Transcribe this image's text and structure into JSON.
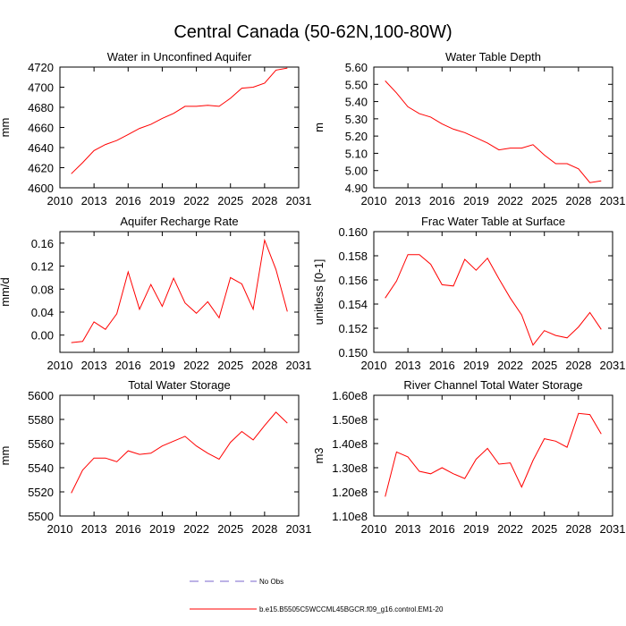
{
  "figure": {
    "title": "Central Canada (50-62N,100-80W)"
  },
  "legend": {
    "items": [
      {
        "label": "No Obs",
        "color": "#7a66cc",
        "dash": true
      },
      {
        "label": "b.e15.B5505C5WCCML45BGCR.f09_g16.control.EM1-20",
        "color": "#ff0000",
        "dash": false
      }
    ]
  },
  "chart_data": [
    {
      "type": "line",
      "title": "Water in Unconfined Aquifer",
      "ylabel": "mm",
      "xlim": [
        2010,
        2031
      ],
      "ylim": [
        4600,
        4720
      ],
      "xticks": [
        2010,
        2013,
        2016,
        2019,
        2022,
        2025,
        2028,
        2031
      ],
      "yticks": [
        4600,
        4620,
        4640,
        4660,
        4680,
        4700,
        4720
      ],
      "ytick_labels": [
        "4600",
        "4620",
        "4640",
        "4660",
        "4680",
        "4700",
        "4720"
      ],
      "color": "#ff0000",
      "x": [
        2011,
        2012,
        2013,
        2014,
        2015,
        2016,
        2017,
        2018,
        2019,
        2020,
        2021,
        2022,
        2023,
        2024,
        2025,
        2026,
        2027,
        2028,
        2029,
        2030
      ],
      "y": [
        4614,
        4625,
        4637,
        4643,
        4647,
        4653,
        4659,
        4663,
        4669,
        4674,
        4681,
        4681,
        4682,
        4681,
        4689,
        4699,
        4700,
        4704,
        4717,
        4719
      ]
    },
    {
      "type": "line",
      "title": "Water Table Depth",
      "ylabel": "m",
      "xlim": [
        2010,
        2031
      ],
      "ylim": [
        4.9,
        5.6
      ],
      "xticks": [
        2010,
        2013,
        2016,
        2019,
        2022,
        2025,
        2028,
        2031
      ],
      "yticks": [
        4.9,
        5.0,
        5.1,
        5.2,
        5.3,
        5.4,
        5.5,
        5.6
      ],
      "ytick_labels": [
        "4.90",
        "5.00",
        "5.10",
        "5.20",
        "5.30",
        "5.40",
        "5.50",
        "5.60"
      ],
      "color": "#ff0000",
      "x": [
        2011,
        2012,
        2013,
        2014,
        2015,
        2016,
        2017,
        2018,
        2019,
        2020,
        2021,
        2022,
        2023,
        2024,
        2025,
        2026,
        2027,
        2028,
        2029,
        2030
      ],
      "y": [
        5.52,
        5.45,
        5.37,
        5.33,
        5.31,
        5.27,
        5.24,
        5.22,
        5.19,
        5.16,
        5.12,
        5.13,
        5.13,
        5.15,
        5.09,
        5.04,
        5.04,
        5.01,
        4.93,
        4.94
      ]
    },
    {
      "type": "line",
      "title": "Aquifer Recharge Rate",
      "ylabel": "mm/d",
      "xlim": [
        2010,
        2031
      ],
      "ylim": [
        -0.03,
        0.18
      ],
      "xticks": [
        2010,
        2013,
        2016,
        2019,
        2022,
        2025,
        2028,
        2031
      ],
      "yticks": [
        0.0,
        0.04,
        0.08,
        0.12,
        0.16
      ],
      "ytick_labels": [
        "0.00",
        "0.04",
        "0.08",
        "0.12",
        "0.16"
      ],
      "color": "#ff0000",
      "x": [
        2011,
        2012,
        2013,
        2014,
        2015,
        2016,
        2017,
        2018,
        2019,
        2020,
        2021,
        2022,
        2023,
        2024,
        2025,
        2026,
        2027,
        2028,
        2029,
        2030
      ],
      "y": [
        -0.013,
        -0.011,
        0.023,
        0.01,
        0.037,
        0.11,
        0.045,
        0.088,
        0.05,
        0.099,
        0.056,
        0.038,
        0.058,
        0.03,
        0.1,
        0.089,
        0.045,
        0.165,
        0.114,
        0.041
      ]
    },
    {
      "type": "line",
      "title": "Frac Water Table at Surface",
      "ylabel": "unitless [0-1]",
      "xlim": [
        2010,
        2031
      ],
      "ylim": [
        0.15,
        0.16
      ],
      "xticks": [
        2010,
        2013,
        2016,
        2019,
        2022,
        2025,
        2028,
        2031
      ],
      "yticks": [
        0.15,
        0.152,
        0.154,
        0.156,
        0.158,
        0.16
      ],
      "ytick_labels": [
        "0.150",
        "0.152",
        "0.154",
        "0.156",
        "0.158",
        "0.160"
      ],
      "color": "#ff0000",
      "x": [
        2011,
        2012,
        2013,
        2014,
        2015,
        2016,
        2017,
        2018,
        2019,
        2020,
        2021,
        2022,
        2023,
        2024,
        2025,
        2026,
        2027,
        2028,
        2029,
        2030
      ],
      "y": [
        0.1545,
        0.1559,
        0.1581,
        0.1581,
        0.1573,
        0.1556,
        0.1555,
        0.1577,
        0.1568,
        0.1578,
        0.1561,
        0.1545,
        0.1531,
        0.1506,
        0.1518,
        0.1514,
        0.1512,
        0.1521,
        0.1533,
        0.1519
      ]
    },
    {
      "type": "line",
      "title": "Total Water Storage",
      "ylabel": "mm",
      "xlim": [
        2010,
        2031
      ],
      "ylim": [
        5500,
        5600
      ],
      "xticks": [
        2010,
        2013,
        2016,
        2019,
        2022,
        2025,
        2028,
        2031
      ],
      "yticks": [
        5500,
        5520,
        5540,
        5560,
        5580,
        5600
      ],
      "ytick_labels": [
        "5500",
        "5520",
        "5540",
        "5560",
        "5580",
        "5600"
      ],
      "color": "#ff0000",
      "x": [
        2011,
        2012,
        2013,
        2014,
        2015,
        2016,
        2017,
        2018,
        2019,
        2020,
        2021,
        2022,
        2023,
        2024,
        2025,
        2026,
        2027,
        2028,
        2029,
        2030
      ],
      "y": [
        5519,
        5538,
        5548,
        5548,
        5545,
        5554,
        5551,
        5552,
        5558,
        5562,
        5566,
        5558,
        5552,
        5547,
        5561,
        5570,
        5563,
        5575,
        5586,
        5577
      ]
    },
    {
      "type": "line",
      "title": "River Channel Total Water Storage",
      "ylabel": "m3",
      "xlim": [
        2010,
        2031
      ],
      "ylim": [
        110000000,
        160000000
      ],
      "xticks": [
        2010,
        2013,
        2016,
        2019,
        2022,
        2025,
        2028,
        2031
      ],
      "yticks": [
        110000000,
        120000000,
        130000000,
        140000000,
        150000000,
        160000000
      ],
      "ytick_labels": [
        "1.10e8",
        "1.20e8",
        "1.30e8",
        "1.40e8",
        "1.50e8",
        "1.60e8"
      ],
      "color": "#ff0000",
      "x": [
        2011,
        2012,
        2013,
        2014,
        2015,
        2016,
        2017,
        2018,
        2019,
        2020,
        2021,
        2022,
        2023,
        2024,
        2025,
        2026,
        2027,
        2028,
        2029,
        2030
      ],
      "y": [
        118000000,
        136500000,
        134500000,
        128500000,
        127500000,
        130000000,
        127500000,
        125500000,
        133500000,
        138000000,
        131500000,
        132000000,
        122000000,
        133000000,
        142000000,
        141000000,
        138500000,
        152500000,
        152000000,
        144000000
      ]
    }
  ]
}
